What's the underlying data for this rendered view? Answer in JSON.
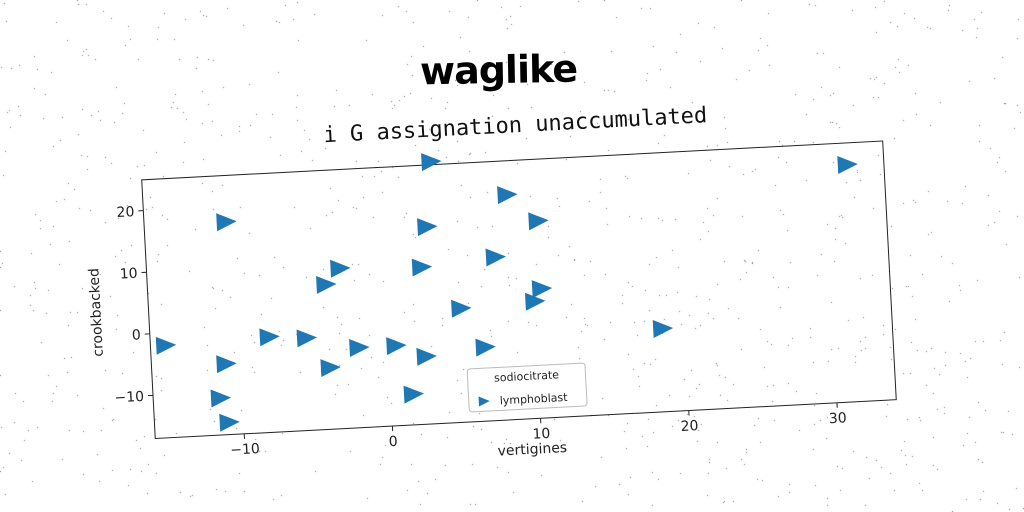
{
  "header": {
    "title": "waglike"
  },
  "chart_data": {
    "type": "scatter",
    "title": "i G assignation unaccumulated",
    "xlabel": "vertigines",
    "ylabel": "crookbacked",
    "xlim": [
      -16,
      34
    ],
    "ylim": [
      -17,
      25
    ],
    "xticks": [
      -10,
      0,
      10,
      20,
      30
    ],
    "yticks": [
      -10,
      0,
      10,
      20
    ],
    "xtick_labels": [
      "−10",
      "0",
      "10",
      "20",
      "30"
    ],
    "ytick_labels": [
      "−10",
      "0",
      "10",
      "20"
    ],
    "grid": false,
    "legend": {
      "title": "sodiocitrate",
      "placement": "lower-center"
    },
    "marker": "triangle-right",
    "series": [
      {
        "name": "lymphoblast",
        "color": "#1f77b4",
        "points": [
          [
            3.5,
            25.5
          ],
          [
            8.5,
            19.5
          ],
          [
            -10.5,
            17.5
          ],
          [
            31.5,
            21.5
          ],
          [
            3,
            15
          ],
          [
            10.5,
            15
          ],
          [
            -3,
            9
          ],
          [
            2.5,
            8.5
          ],
          [
            7.5,
            9.5
          ],
          [
            -4,
            6.5
          ],
          [
            5,
            1.5
          ],
          [
            10.5,
            4
          ],
          [
            10,
            2
          ],
          [
            -15,
            -2
          ],
          [
            -8,
            -1.5
          ],
          [
            -5.5,
            -2
          ],
          [
            -2,
            -4
          ],
          [
            0.5,
            -4
          ],
          [
            2.5,
            -6
          ],
          [
            6.5,
            -5
          ],
          [
            -11,
            -5.5
          ],
          [
            -4,
            -7
          ],
          [
            18.5,
            -3.5
          ],
          [
            -11.5,
            -11
          ],
          [
            1.5,
            -12
          ],
          [
            -11,
            -15
          ]
        ]
      }
    ]
  }
}
